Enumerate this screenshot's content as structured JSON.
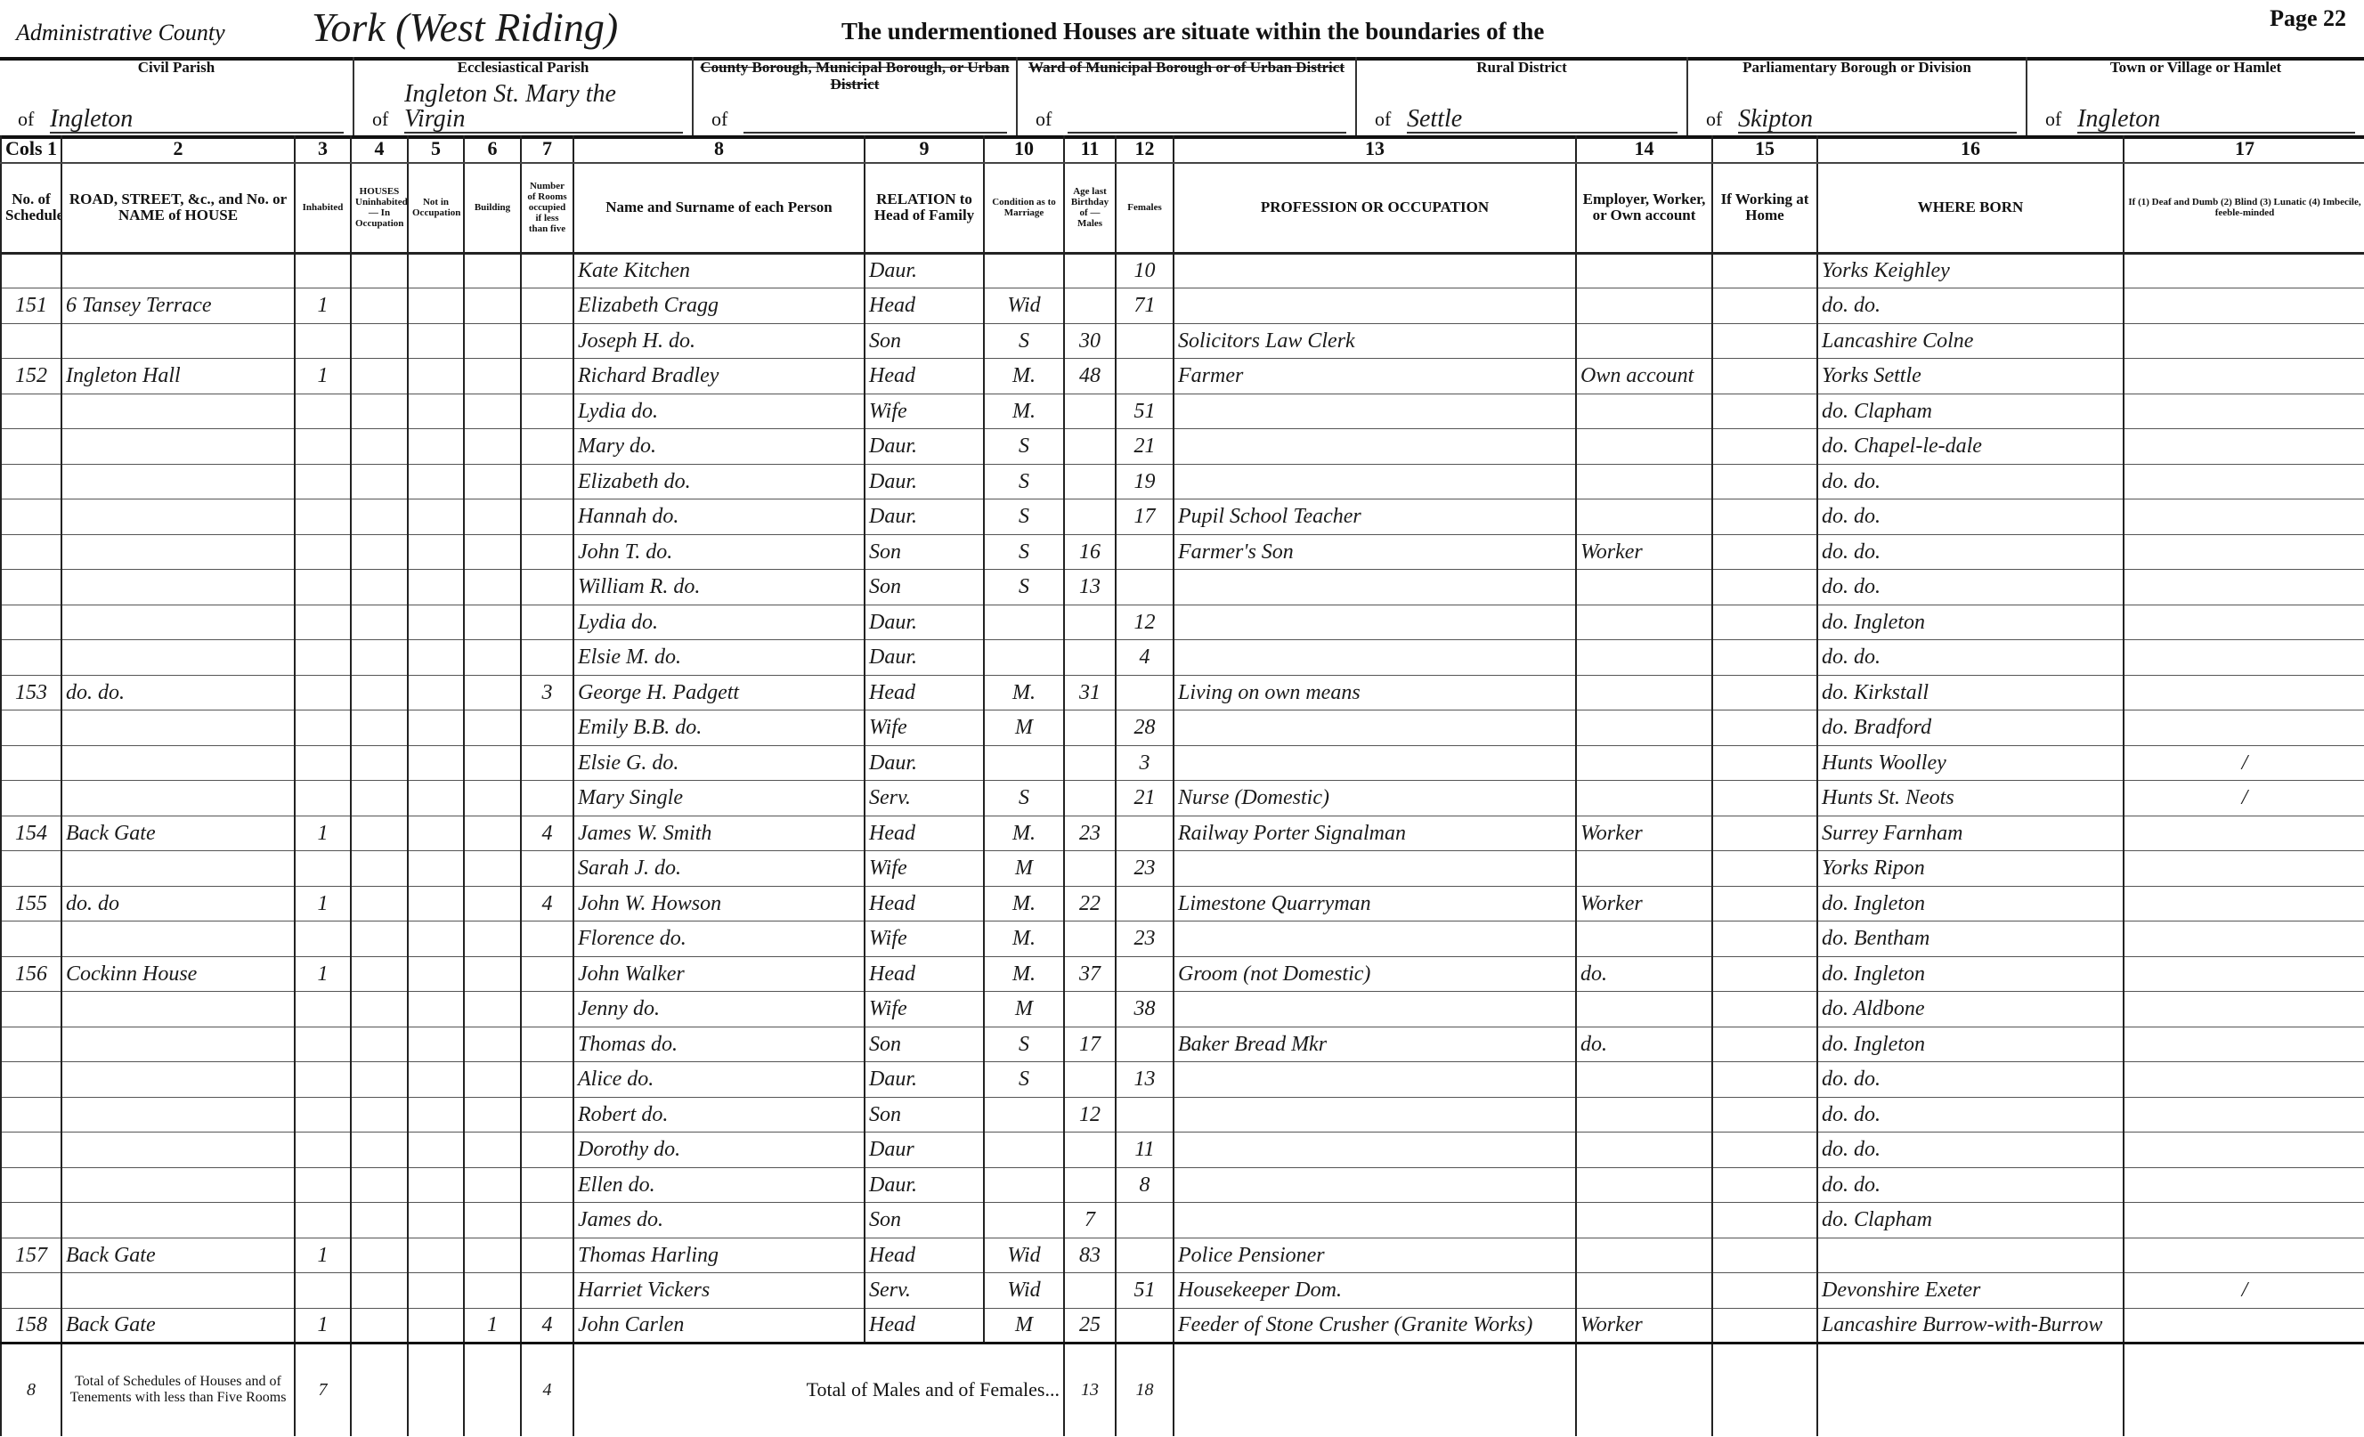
{
  "header": {
    "admin_county_label": "Administrative County",
    "admin_county_value": "York (West Riding)",
    "intro": "The undermentioned Houses are situate within the boundaries of the",
    "page": "Page 22"
  },
  "locations": [
    {
      "label": "Civil Parish",
      "struck": false,
      "of": "of",
      "value": "Ingleton"
    },
    {
      "label": "Ecclesiastical Parish",
      "struck": false,
      "of": "of",
      "value": "Ingleton St. Mary the Virgin"
    },
    {
      "label": "County Borough, Municipal Borough, or Urban District",
      "struck": true,
      "of": "of",
      "value": ""
    },
    {
      "label": "Ward of Municipal Borough or of Urban District",
      "struck": true,
      "of": "of",
      "value": ""
    },
    {
      "label": "Rural District",
      "struck": false,
      "of": "of",
      "value": "Settle"
    },
    {
      "label": "Parliamentary Borough or Division",
      "struck": false,
      "of": "of",
      "value": "Skipton"
    },
    {
      "label": "Town or Village or Hamlet",
      "struck": false,
      "of": "of",
      "value": "Ingleton"
    }
  ],
  "column_numbers": [
    "Cols 1",
    "2",
    "3",
    "4",
    "5",
    "6",
    "7",
    "8",
    "9",
    "10",
    "11",
    "12",
    "13",
    "14",
    "15",
    "16",
    "17"
  ],
  "column_headers": [
    "No. of Schedule",
    "ROAD, STREET, &c., and No. or NAME of HOUSE",
    "Inhabited",
    "HOUSES Uninhabited — In Occupation",
    "Not in Occupation",
    "Building",
    "Number of Rooms occupied if less than five",
    "Name and Surname of each Person",
    "RELATION to Head of Family",
    "Condition as to Marriage",
    "Age last Birthday of — Males",
    "Females",
    "PROFESSION OR OCCUPATION",
    "Employer, Worker, or Own account",
    "If Working at Home",
    "WHERE BORN",
    "If (1) Deaf and Dumb (2) Blind (3) Lunatic (4) Imbecile, feeble-minded"
  ],
  "rows": [
    {
      "sched": "",
      "address": "",
      "inhab": "",
      "building": "",
      "rooms": "",
      "name": "Kate Kitchen",
      "relation": "Daur.",
      "condition": "",
      "male": "",
      "female": "10",
      "occupation": "",
      "employment": "",
      "at_home": "",
      "born": "Yorks Keighley",
      "infirmity": ""
    },
    {
      "sched": "151",
      "address": "6 Tansey Terrace",
      "inhab": "1",
      "building": "",
      "rooms": "",
      "name": "Elizabeth Cragg",
      "relation": "Head",
      "condition": "Wid",
      "male": "",
      "female": "71",
      "occupation": "",
      "employment": "",
      "at_home": "",
      "born": "do. do.",
      "infirmity": ""
    },
    {
      "sched": "",
      "address": "",
      "inhab": "",
      "building": "",
      "rooms": "",
      "name": "Joseph H. do.",
      "relation": "Son",
      "condition": "S",
      "male": "30",
      "female": "",
      "occupation": "Solicitors Law Clerk",
      "employment": "",
      "at_home": "",
      "born": "Lancashire Colne",
      "infirmity": ""
    },
    {
      "sched": "152",
      "address": "Ingleton Hall",
      "inhab": "1",
      "building": "",
      "rooms": "",
      "name": "Richard Bradley",
      "relation": "Head",
      "condition": "M.",
      "male": "48",
      "female": "",
      "occupation": "Farmer",
      "employment": "Own account",
      "at_home": "",
      "born": "Yorks Settle",
      "infirmity": ""
    },
    {
      "sched": "",
      "address": "",
      "inhab": "",
      "building": "",
      "rooms": "",
      "name": "Lydia do.",
      "relation": "Wife",
      "condition": "M.",
      "male": "",
      "female": "51",
      "occupation": "",
      "employment": "",
      "at_home": "",
      "born": "do. Clapham",
      "infirmity": ""
    },
    {
      "sched": "",
      "address": "",
      "inhab": "",
      "building": "",
      "rooms": "",
      "name": "Mary do.",
      "relation": "Daur.",
      "condition": "S",
      "male": "",
      "female": "21",
      "occupation": "",
      "employment": "",
      "at_home": "",
      "born": "do. Chapel-le-dale",
      "infirmity": ""
    },
    {
      "sched": "",
      "address": "",
      "inhab": "",
      "building": "",
      "rooms": "",
      "name": "Elizabeth do.",
      "relation": "Daur.",
      "condition": "S",
      "male": "",
      "female": "19",
      "occupation": "",
      "employment": "",
      "at_home": "",
      "born": "do. do.",
      "infirmity": ""
    },
    {
      "sched": "",
      "address": "",
      "inhab": "",
      "building": "",
      "rooms": "",
      "name": "Hannah do.",
      "relation": "Daur.",
      "condition": "S",
      "male": "",
      "female": "17",
      "occupation": "Pupil School Teacher",
      "employment": "",
      "at_home": "",
      "born": "do. do.",
      "infirmity": ""
    },
    {
      "sched": "",
      "address": "",
      "inhab": "",
      "building": "",
      "rooms": "",
      "name": "John T. do.",
      "relation": "Son",
      "condition": "S",
      "male": "16",
      "female": "",
      "occupation": "Farmer's Son",
      "employment": "Worker",
      "at_home": "",
      "born": "do. do.",
      "infirmity": ""
    },
    {
      "sched": "",
      "address": "",
      "inhab": "",
      "building": "",
      "rooms": "",
      "name": "William R. do.",
      "relation": "Son",
      "condition": "S",
      "male": "13",
      "female": "",
      "occupation": "",
      "employment": "",
      "at_home": "",
      "born": "do. do.",
      "infirmity": ""
    },
    {
      "sched": "",
      "address": "",
      "inhab": "",
      "building": "",
      "rooms": "",
      "name": "Lydia do.",
      "relation": "Daur.",
      "condition": "",
      "male": "",
      "female": "12",
      "occupation": "",
      "employment": "",
      "at_home": "",
      "born": "do. Ingleton",
      "infirmity": ""
    },
    {
      "sched": "",
      "address": "",
      "inhab": "",
      "building": "",
      "rooms": "",
      "name": "Elsie M. do.",
      "relation": "Daur.",
      "condition": "",
      "male": "",
      "female": "4",
      "occupation": "",
      "employment": "",
      "at_home": "",
      "born": "do. do.",
      "infirmity": ""
    },
    {
      "sched": "153",
      "address": "do. do.",
      "inhab": "",
      "building": "",
      "rooms": "3",
      "name": "George H. Padgett",
      "relation": "Head",
      "condition": "M.",
      "male": "31",
      "female": "",
      "occupation": "Living on own means",
      "employment": "",
      "at_home": "",
      "born": "do. Kirkstall",
      "infirmity": ""
    },
    {
      "sched": "",
      "address": "",
      "inhab": "",
      "building": "",
      "rooms": "",
      "name": "Emily B.B. do.",
      "relation": "Wife",
      "condition": "M",
      "male": "",
      "female": "28",
      "occupation": "",
      "employment": "",
      "at_home": "",
      "born": "do. Bradford",
      "infirmity": ""
    },
    {
      "sched": "",
      "address": "",
      "inhab": "",
      "building": "",
      "rooms": "",
      "name": "Elsie G. do.",
      "relation": "Daur.",
      "condition": "",
      "male": "",
      "female": "3",
      "occupation": "",
      "employment": "",
      "at_home": "",
      "born": "Hunts Woolley",
      "infirmity": "/"
    },
    {
      "sched": "",
      "address": "",
      "inhab": "",
      "building": "",
      "rooms": "",
      "name": "Mary Single",
      "relation": "Serv.",
      "condition": "S",
      "male": "",
      "female": "21",
      "occupation": "Nurse (Domestic)",
      "employment": "",
      "at_home": "",
      "born": "Hunts St. Neots",
      "infirmity": "/"
    },
    {
      "sched": "154",
      "address": "Back Gate",
      "inhab": "1",
      "building": "",
      "rooms": "4",
      "name": "James W. Smith",
      "relation": "Head",
      "condition": "M.",
      "male": "23",
      "female": "",
      "occupation": "Railway Porter Signalman",
      "employment": "Worker",
      "at_home": "",
      "born": "Surrey Farnham",
      "infirmity": ""
    },
    {
      "sched": "",
      "address": "",
      "inhab": "",
      "building": "",
      "rooms": "",
      "name": "Sarah J. do.",
      "relation": "Wife",
      "condition": "M",
      "male": "",
      "female": "23",
      "occupation": "",
      "employment": "",
      "at_home": "",
      "born": "Yorks Ripon",
      "infirmity": ""
    },
    {
      "sched": "155",
      "address": "do. do",
      "inhab": "1",
      "building": "",
      "rooms": "4",
      "name": "John W. Howson",
      "relation": "Head",
      "condition": "M.",
      "male": "22",
      "female": "",
      "occupation": "Limestone Quarryman",
      "employment": "Worker",
      "at_home": "",
      "born": "do. Ingleton",
      "infirmity": ""
    },
    {
      "sched": "",
      "address": "",
      "inhab": "",
      "building": "",
      "rooms": "",
      "name": "Florence do.",
      "relation": "Wife",
      "condition": "M.",
      "male": "",
      "female": "23",
      "occupation": "",
      "employment": "",
      "at_home": "",
      "born": "do. Bentham",
      "infirmity": ""
    },
    {
      "sched": "156",
      "address": "Cockinn House",
      "inhab": "1",
      "building": "",
      "rooms": "",
      "name": "John Walker",
      "relation": "Head",
      "condition": "M.",
      "male": "37",
      "female": "",
      "occupation": "Groom (not Domestic)",
      "employment": "do.",
      "at_home": "",
      "born": "do. Ingleton",
      "infirmity": ""
    },
    {
      "sched": "",
      "address": "",
      "inhab": "",
      "building": "",
      "rooms": "",
      "name": "Jenny do.",
      "relation": "Wife",
      "condition": "M",
      "male": "",
      "female": "38",
      "occupation": "",
      "employment": "",
      "at_home": "",
      "born": "do. Aldbone",
      "infirmity": ""
    },
    {
      "sched": "",
      "address": "",
      "inhab": "",
      "building": "",
      "rooms": "",
      "name": "Thomas do.",
      "relation": "Son",
      "condition": "S",
      "male": "17",
      "female": "",
      "occupation": "Baker Bread Mkr",
      "employment": "do.",
      "at_home": "",
      "born": "do. Ingleton",
      "infirmity": ""
    },
    {
      "sched": "",
      "address": "",
      "inhab": "",
      "building": "",
      "rooms": "",
      "name": "Alice do.",
      "relation": "Daur.",
      "condition": "S",
      "male": "",
      "female": "13",
      "occupation": "",
      "employment": "",
      "at_home": "",
      "born": "do. do.",
      "infirmity": ""
    },
    {
      "sched": "",
      "address": "",
      "inhab": "",
      "building": "",
      "rooms": "",
      "name": "Robert do.",
      "relation": "Son",
      "condition": "",
      "male": "12",
      "female": "",
      "occupation": "",
      "employment": "",
      "at_home": "",
      "born": "do. do.",
      "infirmity": ""
    },
    {
      "sched": "",
      "address": "",
      "inhab": "",
      "building": "",
      "rooms": "",
      "name": "Dorothy do.",
      "relation": "Daur",
      "condition": "",
      "male": "",
      "female": "11",
      "occupation": "",
      "employment": "",
      "at_home": "",
      "born": "do. do.",
      "infirmity": ""
    },
    {
      "sched": "",
      "address": "",
      "inhab": "",
      "building": "",
      "rooms": "",
      "name": "Ellen do.",
      "relation": "Daur.",
      "condition": "",
      "male": "",
      "female": "8",
      "occupation": "",
      "employment": "",
      "at_home": "",
      "born": "do. do.",
      "infirmity": ""
    },
    {
      "sched": "",
      "address": "",
      "inhab": "",
      "building": "",
      "rooms": "",
      "name": "James do.",
      "relation": "Son",
      "condition": "",
      "male": "7",
      "female": "",
      "occupation": "",
      "employment": "",
      "at_home": "",
      "born": "do. Clapham",
      "infirmity": ""
    },
    {
      "sched": "157",
      "address": "Back Gate",
      "inhab": "1",
      "building": "",
      "rooms": "",
      "name": "Thomas Harling",
      "relation": "Head",
      "condition": "Wid",
      "male": "83",
      "female": "",
      "occupation": "Police Pensioner",
      "employment": "",
      "at_home": "",
      "born": "",
      "infirmity": ""
    },
    {
      "sched": "",
      "address": "",
      "inhab": "",
      "building": "",
      "rooms": "",
      "name": "Harriet Vickers",
      "relation": "Serv.",
      "condition": "Wid",
      "male": "",
      "female": "51",
      "occupation": "Housekeeper Dom.",
      "employment": "",
      "at_home": "",
      "born": "Devonshire Exeter",
      "infirmity": "/"
    },
    {
      "sched": "158",
      "address": "Back Gate",
      "inhab": "1",
      "building": "1",
      "rooms": "4",
      "name": "John Carlen",
      "relation": "Head",
      "condition": "M",
      "male": "25",
      "female": "",
      "occupation": "Feeder of Stone Crusher (Granite Works)",
      "employment": "Worker",
      "at_home": "",
      "born": "Lancashire Burrow-with-Burrow",
      "infirmity": ""
    }
  ],
  "totals": {
    "schedules": "8",
    "label_houses": "Total of Schedules of Houses and of Tenements with less than Five Rooms",
    "inhabited": "7",
    "rooms": "4",
    "label_people": "Total of Males and of Females...",
    "males": "13",
    "females": "18"
  }
}
